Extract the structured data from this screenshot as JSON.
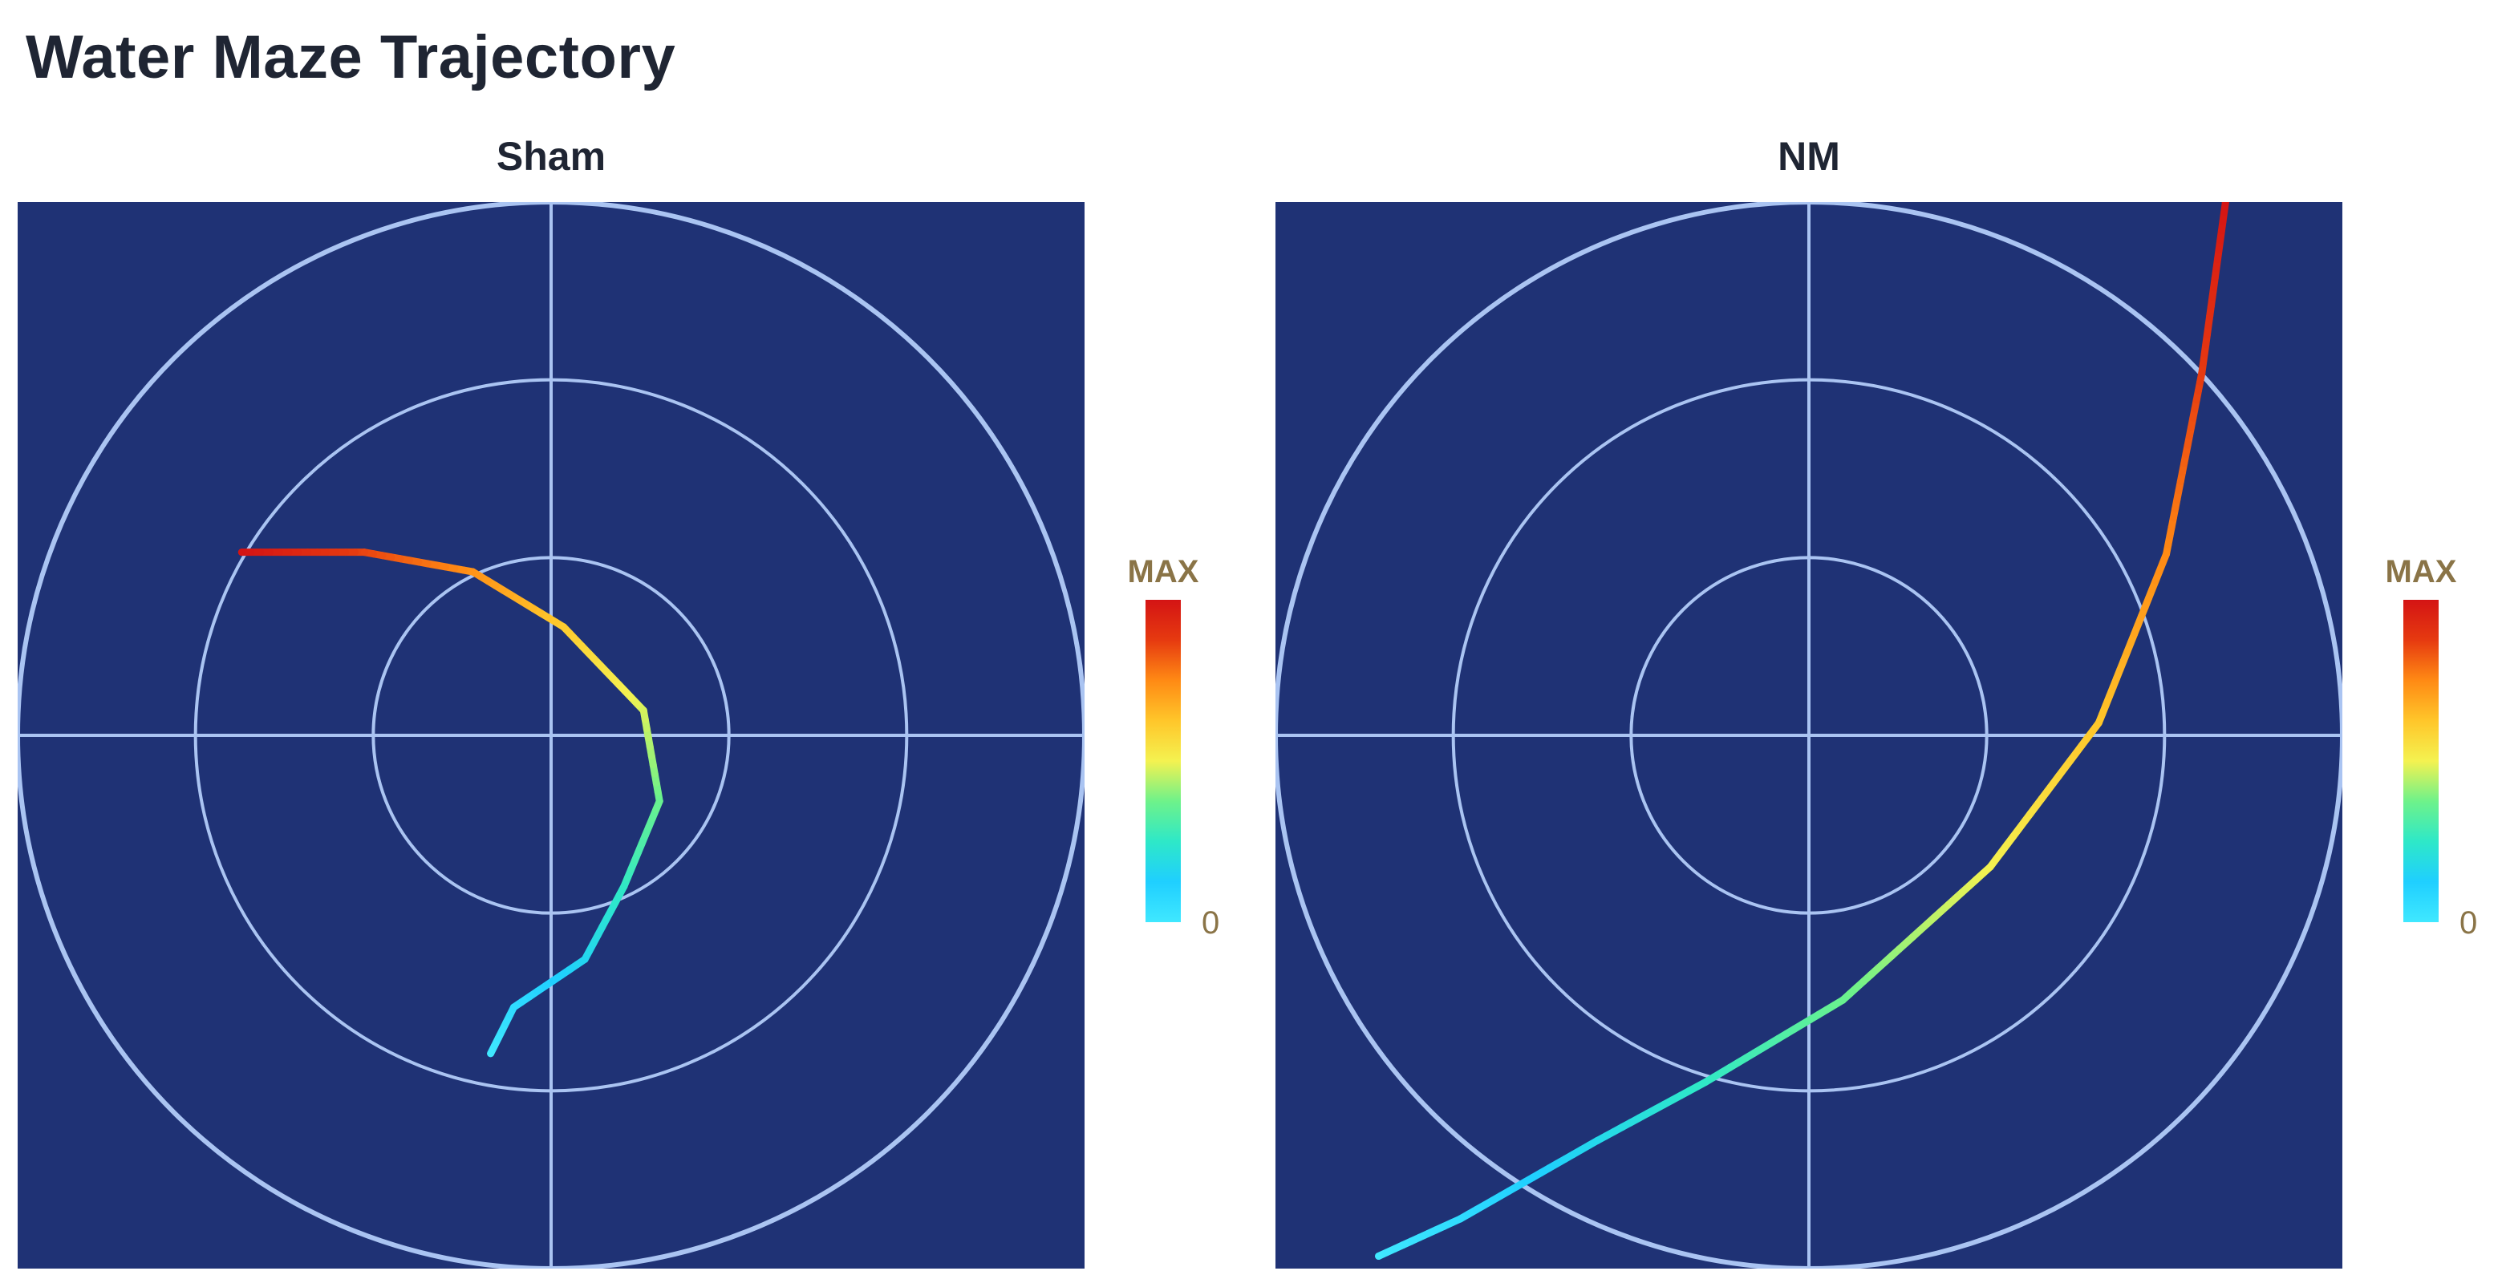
{
  "page": {
    "title": "Water Maze Trajectory"
  },
  "colors": {
    "background": "#1f3275",
    "grid": "#aac4f2",
    "title": "#1f2533",
    "colorbar_label": "#8a7447"
  },
  "colormap": [
    "#40e8ff",
    "#1fcfff",
    "#2ee8c8",
    "#6ef28a",
    "#f4f250",
    "#ffc62a",
    "#ff8a14",
    "#e63a10",
    "#d41414"
  ],
  "chart_data": [
    {
      "type": "line",
      "title": "Sham",
      "xlim": [
        -3,
        3
      ],
      "ylim": [
        -3,
        3
      ],
      "grid": true,
      "rings": [
        1,
        2,
        3
      ],
      "crosshair": true,
      "colorbar": {
        "max_label": "MAX",
        "min_label": "0",
        "placement": "right"
      },
      "trajectory": {
        "x": [
          -0.34,
          -0.21,
          0.19,
          0.41,
          0.61,
          0.52,
          0.07,
          -0.44,
          -1.05,
          -1.74
        ],
        "y": [
          -1.79,
          -1.53,
          -1.26,
          -0.85,
          -0.37,
          0.14,
          0.61,
          0.92,
          1.03,
          1.03
        ]
      }
    },
    {
      "type": "line",
      "title": "NM",
      "xlim": [
        -3,
        3
      ],
      "ylim": [
        -3,
        3
      ],
      "grid": true,
      "rings": [
        1,
        2,
        3
      ],
      "crosshair": true,
      "colorbar": {
        "max_label": "MAX",
        "min_label": "0",
        "placement": "right"
      },
      "trajectory": {
        "x": [
          -2.42,
          -1.96,
          -1.19,
          -0.58,
          0.19,
          1.02,
          1.63,
          2.01,
          2.21,
          2.35
        ],
        "y": [
          -2.93,
          -2.72,
          -2.28,
          -1.95,
          -1.49,
          -0.74,
          0.07,
          1.02,
          2.04,
          3.05
        ]
      }
    }
  ]
}
